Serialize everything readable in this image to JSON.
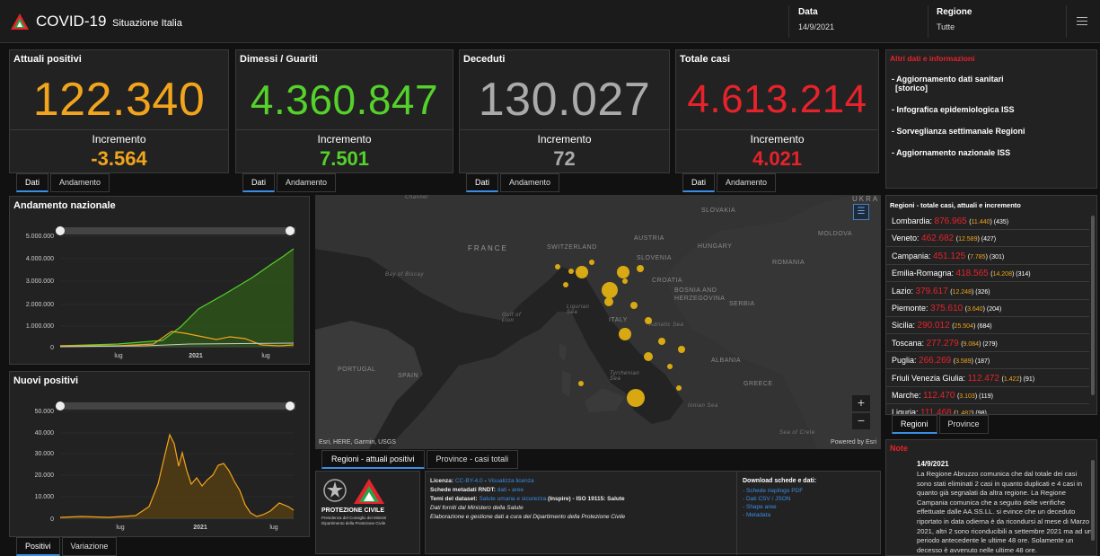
{
  "header": {
    "title": "COVID-19",
    "subtitle": "Situazione Italia",
    "date_label": "Data",
    "date_value": "14/9/2021",
    "region_label": "Regione",
    "region_value": "Tutte"
  },
  "cards": [
    {
      "title": "Attuali positivi",
      "value": "122.340",
      "inc_label": "Incremento",
      "inc_value": "-3.564",
      "color": "#f2a51c"
    },
    {
      "title": "Dimessi / Guariti",
      "value": "4.360.847",
      "inc_label": "Incremento",
      "inc_value": "7.501",
      "color": "#55d12b"
    },
    {
      "title": "Deceduti",
      "value": "130.027",
      "inc_label": "Incremento",
      "inc_value": "72",
      "color": "#aaaaaa"
    },
    {
      "title": "Totale casi",
      "value": "4.613.214",
      "inc_label": "Incremento",
      "inc_value": "4.021",
      "color": "#e6232b"
    }
  ],
  "card_tabs": [
    "Dati",
    "Andamento"
  ],
  "links": {
    "title": "Altri dati e informazioni",
    "items": [
      "- Aggiornamento dati sanitari",
      "[storico]",
      "- Infografica epidemiologica ISS",
      "- Sorveglianza settimanale Regioni",
      "- Aggiornamento nazionale ISS"
    ]
  },
  "trend": {
    "title": "Andamento nazionale",
    "y_ticks": [
      "5.000.000",
      "4.000.000",
      "3.000.000",
      "2.000.000",
      "1.000.000",
      "0"
    ],
    "x_ticks": [
      "lug",
      "2021",
      "lug"
    ]
  },
  "new_pos": {
    "title": "Nuovi positivi",
    "y_ticks": [
      "50.000",
      "40.000",
      "30.000",
      "20.000",
      "10.000",
      "0"
    ],
    "x_ticks": [
      "lug",
      "2021",
      "lug"
    ],
    "tabs": [
      "Positivi",
      "Variazione"
    ]
  },
  "map": {
    "labels": {
      "ukraine": "UKRA",
      "slovakia": "SLOVAKIA",
      "moldova": "MOLDOVA",
      "france": "FRANCE",
      "switzerland": "SWITZERLAND",
      "austria": "AUSTRIA",
      "hungary": "HUNGARY",
      "slovenia": "SLOVENIA",
      "croatia": "CROATIA",
      "romania": "ROMANIA",
      "bosnia": "BOSNIA AND",
      "bosnia2": "HERZEGOVINA",
      "serbia": "SERBIA",
      "italy": "ITALY",
      "portugal": "PORTUGAL",
      "spain": "SPAIN",
      "albania": "ALBANIA",
      "greece": "GREECE",
      "channel": "Channel",
      "biscay": "Bay of Biscay",
      "lion": "Gulf of Lion",
      "ligurian": "Ligurian Sea",
      "adriatic": "Adriatic Sea",
      "tyrrhenian": "Tyrrhenian Sea",
      "ionian": "Ionian Sea",
      "crete": "Sea of Crete"
    },
    "attribution": "Esri, HERE, Garmin, USGS",
    "powered": "Powered by Esri",
    "tabs": [
      "Regioni - attuali positivi",
      "Province - casi totali"
    ]
  },
  "regions": {
    "title": "Regioni - totale casi, attuali e incremento",
    "rows": [
      {
        "name": "Lombardia",
        "total": "876.965",
        "current": "11.440",
        "inc": "435"
      },
      {
        "name": "Veneto",
        "total": "462.682",
        "current": "12.589",
        "inc": "427"
      },
      {
        "name": "Campania",
        "total": "451.125",
        "current": "7.785",
        "inc": "301"
      },
      {
        "name": "Emilia-Romagna",
        "total": "418.565",
        "current": "14.208",
        "inc": "314"
      },
      {
        "name": "Lazio",
        "total": "379.617",
        "current": "12.248",
        "inc": "326"
      },
      {
        "name": "Piemonte",
        "total": "375.610",
        "current": "3.640",
        "inc": "204"
      },
      {
        "name": "Sicilia",
        "total": "290.012",
        "current": "25.504",
        "inc": "684"
      },
      {
        "name": "Toscana",
        "total": "277.279",
        "current": "9.084",
        "inc": "279"
      },
      {
        "name": "Puglia",
        "total": "266.269",
        "current": "3.589",
        "inc": "187"
      },
      {
        "name": "Friuli Venezia Giulia",
        "total": "112.472",
        "current": "1.422",
        "inc": "91"
      },
      {
        "name": "Marche",
        "total": "112.470",
        "current": "3.103",
        "inc": "119"
      },
      {
        "name": "Liguria",
        "total": "111.468",
        "current": "1.482",
        "inc": "98"
      }
    ],
    "tabs": [
      "Regioni",
      "Province"
    ]
  },
  "note": {
    "title": "Note",
    "date": "14/9/2021",
    "text": "La Regione Abruzzo comunica che dal totale dei casi sono stati eliminati 2 casi in quanto duplicati e 4 casi in quanto già segnalati da altra regione. La Regione Campania comunica che a seguito delle verifiche effettuate dalle AA.SS.LL. si evince che un deceduto riportato in data odierna è da ricondursi al mese di Marzo 2021, altri 2 sono riconducibili a settembre 2021 ma ad un periodo antecedente le ultime 48 ore. Solamente un decesso è avvenuto nelle ultime 48 ore."
  },
  "footer": {
    "logo_text": "PROTEZIONE CIVILE",
    "logo_sub1": "Presidenza del Consiglio dei Ministri",
    "logo_sub2": "Dipartimento della Protezione Civile",
    "licenza_k": "Licenza:",
    "licenza_v": "CC-BY-4.0",
    "licenza_link": "Visualizza licenza",
    "rndt_k": "Schede metadati RNDT:",
    "rndt_v1": "dati",
    "rndt_v2": "aree",
    "temi_k": "Temi del dataset:",
    "temi_v": "Salute umana e sicurezza",
    "temi_rest": "(Inspire) - ISO 19115: Salute",
    "line4": "Dati forniti dal Ministero della Salute",
    "line5": "Elaborazione e gestione dati a cura del Dipartimento della Protezione Civile",
    "dl_title": "Download schede e dati:",
    "dl_items": [
      "Schede riepilogo PDF",
      "Dati CSV / JSON",
      "Shape aree",
      "Metadata"
    ]
  }
}
